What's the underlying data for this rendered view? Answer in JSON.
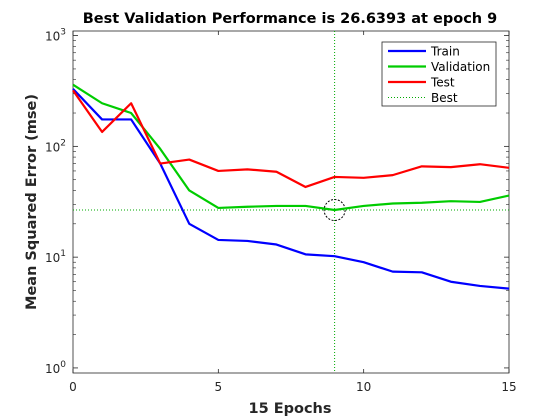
{
  "chart_data": {
    "type": "line",
    "title": "Best Validation Performance is 26.6393 at epoch 9",
    "xlabel": "15 Epochs",
    "ylabel": "Mean Squared Error  (mse)",
    "xlim": [
      0,
      15
    ],
    "ylim": [
      0.9,
      1100
    ],
    "yscale": "log",
    "x_ticks": [
      0,
      5,
      10,
      15
    ],
    "y_ticks": [
      {
        "value": 1,
        "base": "10",
        "exp": "0"
      },
      {
        "value": 10,
        "base": "10",
        "exp": "1"
      },
      {
        "value": 100,
        "base": "10",
        "exp": "2"
      },
      {
        "value": 1000,
        "base": "10",
        "exp": "3"
      }
    ],
    "legend_position": "top-right",
    "x": [
      0,
      1,
      2,
      3,
      4,
      5,
      6,
      7,
      8,
      9,
      10,
      11,
      12,
      13,
      14,
      15
    ],
    "series": [
      {
        "name": "Train",
        "color": "#0000ff",
        "style": "solid",
        "values": [
          330,
          175,
          175,
          70,
          20,
          14.3,
          14,
          13,
          10.6,
          10.2,
          9,
          7.4,
          7.3,
          6,
          5.5,
          5.2
        ]
      },
      {
        "name": "Validation",
        "color": "#00cc00",
        "style": "solid",
        "values": [
          360,
          245,
          200,
          95,
          40,
          27.8,
          28.5,
          29,
          29,
          26.6393,
          29,
          30.5,
          31,
          32,
          31.5,
          36
        ]
      },
      {
        "name": "Test",
        "color": "#ff0000",
        "style": "solid",
        "values": [
          320,
          135,
          245,
          70,
          76,
          60,
          62,
          59,
          43,
          53,
          52,
          55,
          66,
          65,
          69,
          64
        ]
      }
    ],
    "best": {
      "name": "Best",
      "epoch": 9,
      "value": 26.6393,
      "color": "#00aa00",
      "style": "dotted"
    },
    "grid": false
  }
}
